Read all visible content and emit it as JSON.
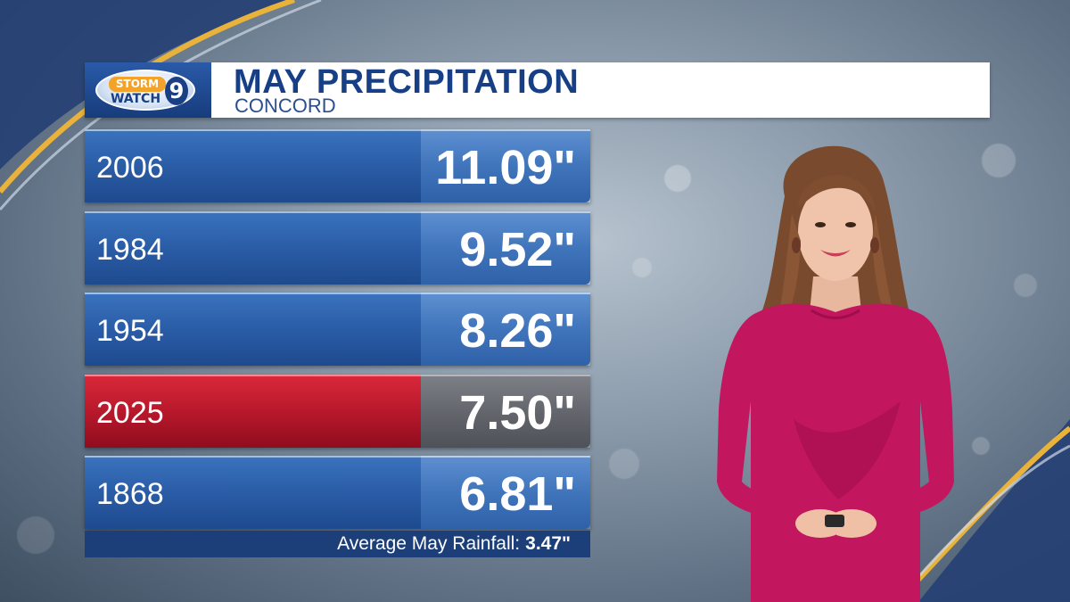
{
  "logo": {
    "storm": "STORM",
    "watch": "WATCH",
    "channel": "9"
  },
  "title": "MAY PRECIPITATION",
  "subtitle": "CONCORD",
  "rows": [
    {
      "year": "2006",
      "value": "11.09\"",
      "highlight": false
    },
    {
      "year": "1984",
      "value": "9.52\"",
      "highlight": false
    },
    {
      "year": "1954",
      "value": "8.26\"",
      "highlight": false
    },
    {
      "year": "2025",
      "value": "7.50\"",
      "highlight": true
    },
    {
      "year": "1868",
      "value": "6.81\"",
      "highlight": false
    }
  ],
  "footer": {
    "label": "Average May Rainfall:",
    "value": "3.47\""
  },
  "colors": {
    "row_blue": "#2a5ca6",
    "row_highlight_red": "#b8182b",
    "title_blue": "#173f86",
    "accent_gold": "#e9b23a",
    "dress_magenta": "#c2175f"
  },
  "icons": {
    "presenter": "presenter-figure"
  }
}
